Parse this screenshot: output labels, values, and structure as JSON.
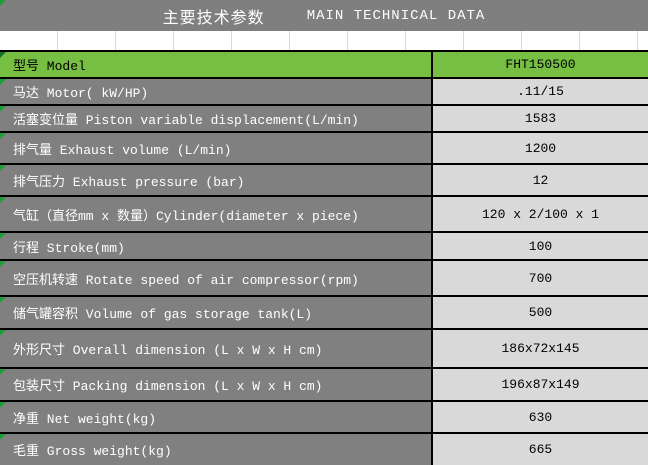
{
  "header": {
    "title_zh": "主要技术参数",
    "title_en": "MAIN TECHNICAL DATA"
  },
  "table": {
    "rows": [
      {
        "label": "型号 Model",
        "value": "FHT150500"
      },
      {
        "label": "马达 Motor( kW/HP)",
        "value": ".11/15"
      },
      {
        "label": "活塞变位量 Piston variable displacement(L/min)",
        "value": "1583"
      },
      {
        "label": "排气量 Exhaust volume (L/min)",
        "value": "1200"
      },
      {
        "label": "排气压力 Exhaust pressure (bar)",
        "value": "12"
      },
      {
        "label": "气缸（直径mm x 数量）Cylinder(diameter x piece)",
        "value": "120 x 2/100 x 1"
      },
      {
        "label": "行程 Stroke(mm)",
        "value": "100"
      },
      {
        "label": "空压机转速 Rotate speed of air compressor(rpm)",
        "value": "700"
      },
      {
        "label": "储气罐容积 Volume of gas storage tank(L)",
        "value": "500"
      },
      {
        "label": "外形尺寸 Overall dimension (L x W x H cm)",
        "value": "186x72x145"
      },
      {
        "label": "包装尺寸 Packing dimension (L x W x H cm)",
        "value": "196x87x149"
      },
      {
        "label": "净重 Net weight(kg)",
        "value": "630"
      },
      {
        "label": "毛重 Gross weight(kg)",
        "value": "665"
      }
    ]
  },
  "icons": {
    "corner_triangle": "excel-error-triangle"
  },
  "colors": {
    "header_bg": "#7f7f7f",
    "label_bg": "#808080",
    "value_bg": "#d9d9d9",
    "green_row": "#76bf43",
    "triangle_green": "#1f9e37",
    "triangle_dark": "#15722c",
    "grid_line": "#d9d9d9",
    "border_black": "#000000"
  }
}
